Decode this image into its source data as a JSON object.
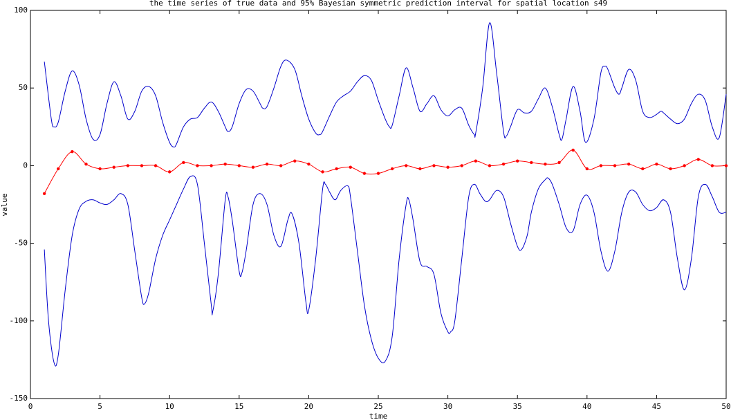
{
  "chart_data": {
    "type": "line",
    "title": "the time series of true data and 95% Bayesian symmetric prediction interval for spatial location s49",
    "xlabel": "time",
    "ylabel": "value",
    "xlim": [
      0,
      50
    ],
    "xticks": [
      0,
      5,
      10,
      15,
      20,
      25,
      30,
      35,
      40,
      45,
      50
    ],
    "ylim": [
      -150,
      100
    ],
    "yticks": [
      -150,
      -100,
      -50,
      0,
      50,
      100
    ],
    "series": [
      {
        "color": "#0000cc",
        "markers": false,
        "x": [
          1,
          1.5,
          1.7,
          2,
          2.5,
          3,
          3.5,
          4,
          4.5,
          5,
          5.5,
          6,
          6.5,
          7,
          7.5,
          8,
          8.5,
          9,
          9.5,
          10,
          10.3,
          10.5,
          11,
          11.5,
          12,
          12.5,
          13,
          13.5,
          14,
          14.2,
          14.5,
          15,
          15.5,
          16,
          16.5,
          16.7,
          17,
          17.5,
          18,
          18.4,
          19,
          19.5,
          20,
          20.5,
          20.8,
          21,
          21.5,
          22,
          22.5,
          23,
          23.5,
          24,
          24.5,
          25,
          25.5,
          25.8,
          26,
          26.5,
          27,
          27.5,
          28,
          28.5,
          29,
          29.5,
          30,
          30.5,
          31,
          31.5,
          31.9,
          32,
          32.5,
          33,
          33.5,
          34,
          34.2,
          34.5,
          35,
          35.5,
          36,
          36.5,
          37,
          37.5,
          38,
          38.2,
          38.5,
          39,
          39.5,
          39.9,
          40.5,
          41,
          41.3,
          41.5,
          42,
          42.3,
          42.5,
          43,
          43.5,
          44,
          44.5,
          45,
          45.3,
          45.5,
          46,
          46.5,
          47,
          47.5,
          48,
          48.5,
          49,
          49.5,
          50
        ],
        "values": [
          67,
          30,
          25,
          28,
          48,
          61,
          52,
          30,
          17,
          20,
          40,
          54,
          45,
          30,
          35,
          48,
          51,
          45,
          28,
          15,
          12,
          14,
          25,
          30,
          31,
          37,
          41,
          35,
          25,
          22,
          25,
          40,
          49,
          48,
          40,
          37,
          38,
          50,
          64,
          68,
          62,
          45,
          30,
          21,
          20,
          22,
          32,
          41,
          45,
          48,
          54,
          58,
          55,
          42,
          30,
          25,
          26,
          45,
          63,
          50,
          35,
          40,
          45,
          36,
          32,
          36,
          37,
          26,
          20,
          21,
          50,
          92,
          60,
          22,
          19,
          25,
          36,
          34,
          35,
          43,
          50,
          38,
          20,
          17,
          30,
          51,
          35,
          15,
          30,
          60,
          64,
          62,
          50,
          46,
          50,
          62,
          55,
          35,
          31,
          33,
          35,
          34,
          30,
          27,
          30,
          40,
          46,
          42,
          25,
          18,
          46
        ]
      },
      {
        "color": "#0000cc",
        "markers": false,
        "x": [
          1,
          1.3,
          1.7,
          2,
          2.5,
          3,
          3.5,
          4,
          4.5,
          5,
          5.5,
          6,
          6.5,
          7,
          7.5,
          8,
          8.2,
          8.5,
          9,
          9.5,
          10,
          10.5,
          11,
          11.5,
          12,
          12.5,
          13,
          13.1,
          13.5,
          14,
          14.2,
          14.5,
          15,
          15.2,
          15.5,
          16,
          16.5,
          17,
          17.5,
          18,
          18.5,
          18.8,
          19.3,
          19.8,
          20,
          20.5,
          21,
          21.2,
          21.5,
          21.9,
          22.3,
          22.8,
          23,
          23.5,
          24,
          24.5,
          25,
          25.5,
          26,
          26.5,
          27,
          27.2,
          27.5,
          28,
          28.5,
          29,
          29.5,
          30,
          30.2,
          30.5,
          31,
          31.5,
          31.9,
          32.3,
          32.7,
          33,
          33.5,
          34,
          34.5,
          35,
          35.3,
          35.7,
          36,
          36.5,
          37,
          37.2,
          37.5,
          38,
          38.5,
          39,
          39.5,
          40,
          40.5,
          41,
          41.5,
          42,
          42.5,
          43,
          43.5,
          44,
          44.5,
          45,
          45.5,
          46,
          46.5,
          47,
          47.5,
          48,
          48.5,
          49,
          49.5,
          50
        ],
        "values": [
          -54,
          -100,
          -127,
          -122,
          -80,
          -45,
          -28,
          -23,
          -22,
          -24,
          -25,
          -22,
          -18,
          -25,
          -55,
          -85,
          -89,
          -82,
          -60,
          -45,
          -35,
          -25,
          -15,
          -7,
          -12,
          -50,
          -90,
          -94,
          -70,
          -22,
          -20,
          -35,
          -68,
          -69,
          -55,
          -25,
          -18,
          -25,
          -45,
          -52,
          -35,
          -31,
          -50,
          -88,
          -93,
          -60,
          -15,
          -12,
          -17,
          -22,
          -16,
          -13,
          -20,
          -55,
          -90,
          -112,
          -124,
          -126,
          -110,
          -60,
          -25,
          -22,
          -35,
          -62,
          -65,
          -70,
          -95,
          -107,
          -107,
          -100,
          -60,
          -20,
          -12,
          -18,
          -23,
          -22,
          -16,
          -20,
          -37,
          -52,
          -54,
          -45,
          -30,
          -15,
          -9,
          -8,
          -12,
          -25,
          -40,
          -42,
          -25,
          -19,
          -30,
          -55,
          -68,
          -55,
          -30,
          -17,
          -17,
          -25,
          -29,
          -27,
          -22,
          -30,
          -60,
          -80,
          -60,
          -20,
          -12,
          -20,
          -30,
          -30
        ]
      },
      {
        "color": "#ff0000",
        "markers": true,
        "x": [
          1,
          2,
          3,
          4,
          5,
          6,
          7,
          8,
          9,
          10,
          11,
          12,
          13,
          14,
          15,
          16,
          17,
          18,
          19,
          20,
          21,
          22,
          23,
          24,
          25,
          26,
          27,
          28,
          29,
          30,
          31,
          32,
          33,
          34,
          35,
          36,
          37,
          38,
          39,
          40,
          41,
          42,
          43,
          44,
          45,
          46,
          47,
          48,
          49,
          50
        ],
        "values": [
          -18,
          -2,
          9,
          1,
          -2,
          -1,
          0,
          0,
          0,
          -4,
          2,
          0,
          0,
          1,
          0,
          -1,
          1,
          0,
          3,
          1,
          -4,
          -2,
          -1,
          -5,
          -5,
          -2,
          0,
          -2,
          0,
          -1,
          0,
          3,
          0,
          1,
          3,
          2,
          1,
          2,
          10,
          -2,
          0,
          0,
          1,
          -2,
          1,
          -2,
          0,
          4,
          0,
          0
        ]
      }
    ]
  }
}
